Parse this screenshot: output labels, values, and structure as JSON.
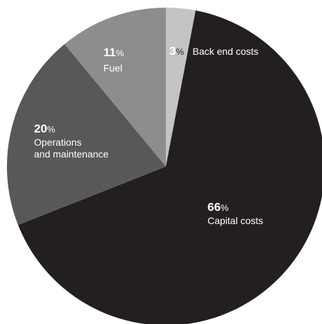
{
  "chart_data": {
    "type": "pie",
    "slices": [
      {
        "label": "Back end costs",
        "value": 3,
        "display": "3",
        "unit": "%",
        "color": "#c4c4c6"
      },
      {
        "label": "Capital costs",
        "value": 66,
        "display": "66",
        "unit": "%",
        "color": "#231f20"
      },
      {
        "label": "Operations and maintenance",
        "label_lines": [
          "Operations",
          "and maintenance"
        ],
        "value": 20,
        "display": "20",
        "unit": "%",
        "color": "#595859"
      },
      {
        "label": "Fuel",
        "value": 11,
        "display": "11",
        "unit": "%",
        "color": "#8e8d8e"
      }
    ],
    "start_angle": "12 o'clock",
    "direction": "clockwise"
  }
}
